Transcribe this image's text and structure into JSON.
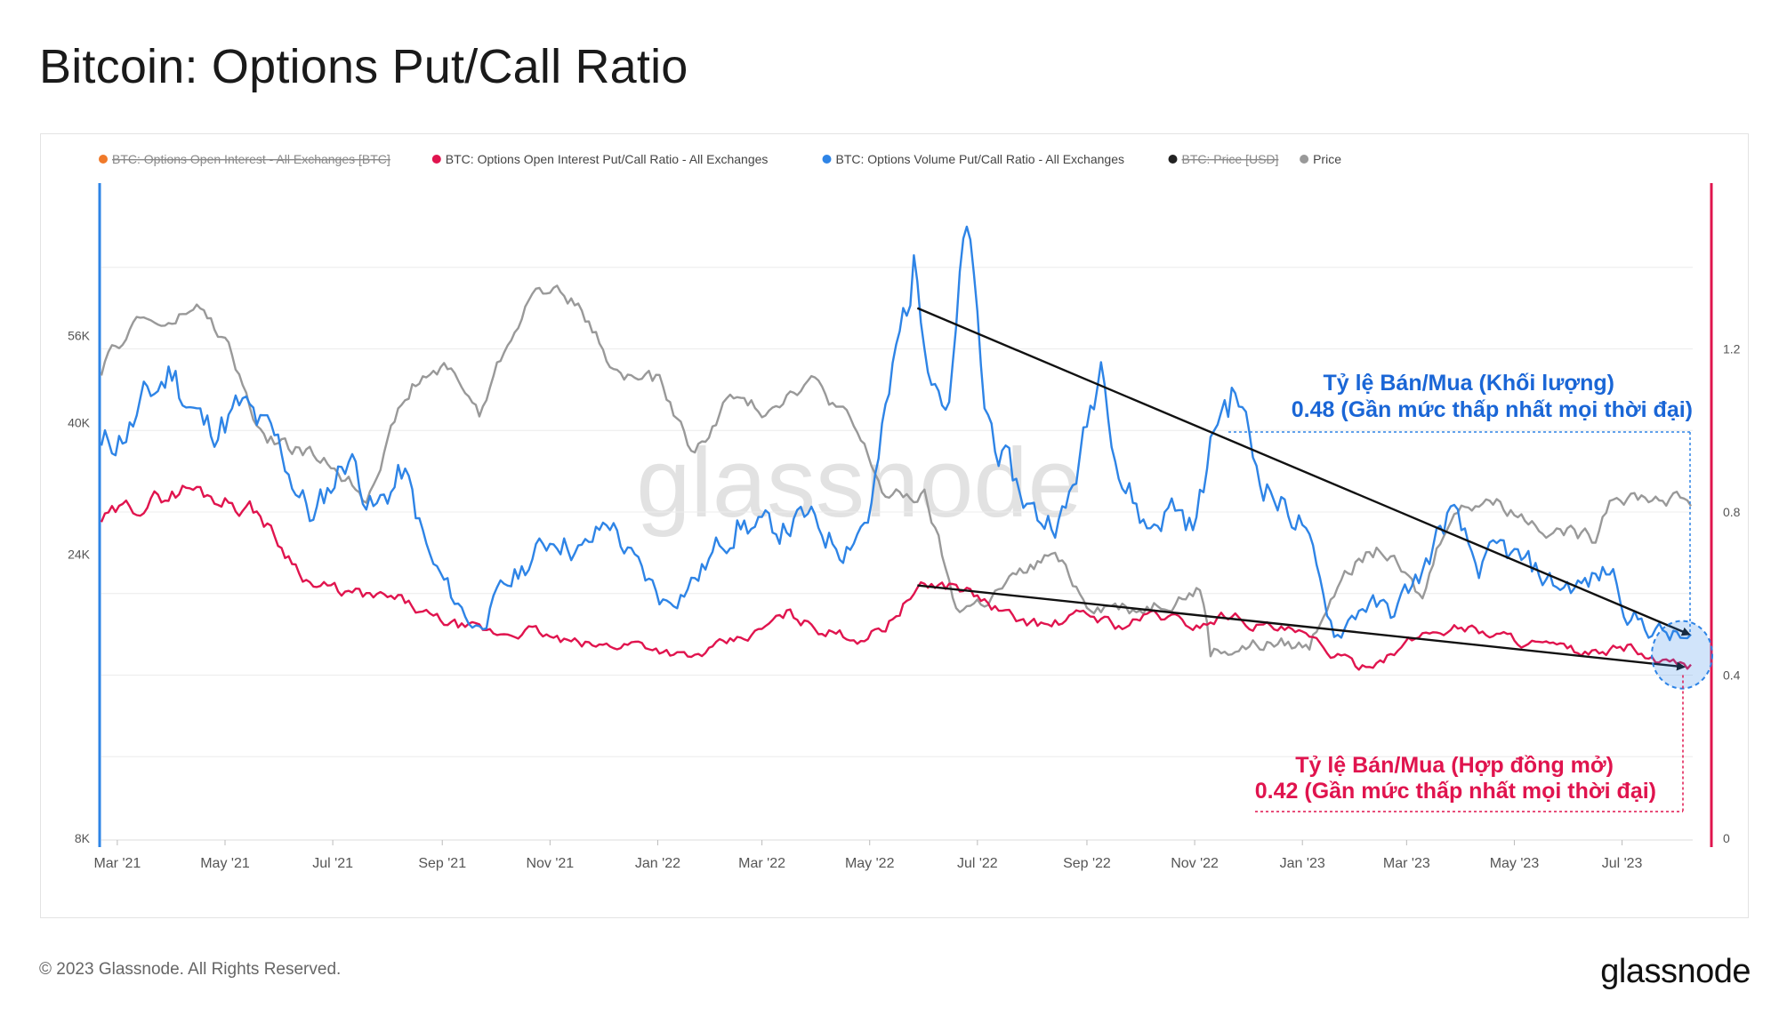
{
  "title": "Bitcoin: Options Put/Call Ratio",
  "footer": {
    "copyright": "© 2023 Glassnode. All Rights Reserved.",
    "logo": "glassnode"
  },
  "watermark": "glassnode",
  "colors": {
    "red": "#e0144e",
    "blue": "#2e84e6",
    "gray": "#999999",
    "orange": "#f07a2a",
    "black": "#222222",
    "axis_left": "#2e84e6",
    "axis_right": "#e0144e"
  },
  "legend": [
    {
      "label": "BTC: Options Open Interest - All Exchanges [BTC]",
      "color": "#f07a2a",
      "hidden": true
    },
    {
      "label": "BTC: Options Open Interest Put/Call Ratio - All Exchanges",
      "color": "#e0144e",
      "hidden": false
    },
    {
      "label": "BTC: Options Volume Put/Call Ratio - All Exchanges",
      "color": "#2e84e6",
      "hidden": false
    },
    {
      "label": "BTC: Price [USD]",
      "color": "#222222",
      "hidden": true
    },
    {
      "label": "Price",
      "color": "#999999",
      "hidden": false
    }
  ],
  "annotations": {
    "volume_label": "Tỷ lệ Bán/Mua (Khối lượng)",
    "volume_value": "0.48 (Gần mức thấp nhất mọi thời đại)",
    "oi_label": "Tỷ lệ Bán/Mua (Hợp đồng mở)",
    "oi_value": "0.42 (Gần mức thấp nhất mọi thời đại)"
  },
  "chart_data": {
    "type": "line",
    "x_range": [
      "2021-02-20",
      "2023-08-10"
    ],
    "x_ticks": [
      {
        "date": "2021-03-01",
        "label": "Mar '21"
      },
      {
        "date": "2021-05-01",
        "label": "May '21"
      },
      {
        "date": "2021-07-01",
        "label": "Jul '21"
      },
      {
        "date": "2021-09-01",
        "label": "Sep '21"
      },
      {
        "date": "2021-11-01",
        "label": "Nov '21"
      },
      {
        "date": "2022-01-01",
        "label": "Jan '22"
      },
      {
        "date": "2022-03-01",
        "label": "Mar '22"
      },
      {
        "date": "2022-05-01",
        "label": "May '22"
      },
      {
        "date": "2022-07-01",
        "label": "Jul '22"
      },
      {
        "date": "2022-09-01",
        "label": "Sep '22"
      },
      {
        "date": "2022-11-01",
        "label": "Nov '22"
      },
      {
        "date": "2023-01-01",
        "label": "Jan '23"
      },
      {
        "date": "2023-03-01",
        "label": "Mar '23"
      },
      {
        "date": "2023-05-01",
        "label": "May '23"
      },
      {
        "date": "2023-07-01",
        "label": "Jul '23"
      }
    ],
    "y_left": {
      "scale": "log",
      "range": [
        8000,
        100000
      ],
      "ticks": [
        {
          "v": 8000,
          "label": "8K"
        },
        {
          "v": 24000,
          "label": "24K"
        },
        {
          "v": 40000,
          "label": "40K"
        },
        {
          "v": 56000,
          "label": "56K"
        }
      ]
    },
    "y_right": {
      "scale": "linear",
      "range": [
        0,
        1.6
      ],
      "ticks": [
        {
          "v": 0,
          "label": "0"
        },
        {
          "v": 0.4,
          "label": "0.4"
        },
        {
          "v": 0.8,
          "label": "0.8"
        },
        {
          "v": 1.2,
          "label": "1.2"
        }
      ]
    },
    "series": [
      {
        "name": "BTC: Options Volume Put/Call Ratio - All Exchanges",
        "axis": "right",
        "color": "#2e84e6",
        "points": [
          [
            "2021-02-20",
            0.95
          ],
          [
            "2021-03-10",
            1.02
          ],
          [
            "2021-04-01",
            1.15
          ],
          [
            "2021-04-20",
            1.0
          ],
          [
            "2021-05-10",
            1.05
          ],
          [
            "2021-06-01",
            0.95
          ],
          [
            "2021-06-20",
            0.78
          ],
          [
            "2021-07-10",
            0.95
          ],
          [
            "2021-07-25",
            0.8
          ],
          [
            "2021-08-10",
            0.9
          ],
          [
            "2021-08-25",
            0.68
          ],
          [
            "2021-09-05",
            0.6
          ],
          [
            "2021-09-20",
            0.52
          ],
          [
            "2021-10-05",
            0.6
          ],
          [
            "2021-10-20",
            0.68
          ],
          [
            "2021-11-05",
            0.75
          ],
          [
            "2021-11-20",
            0.7
          ],
          [
            "2021-12-05",
            0.78
          ],
          [
            "2021-12-20",
            0.66
          ],
          [
            "2022-01-05",
            0.58
          ],
          [
            "2022-01-25",
            0.65
          ],
          [
            "2022-02-15",
            0.78
          ],
          [
            "2022-03-05",
            0.75
          ],
          [
            "2022-03-25",
            0.78
          ],
          [
            "2022-04-15",
            0.72
          ],
          [
            "2022-05-01",
            0.8
          ],
          [
            "2022-05-15",
            1.15
          ],
          [
            "2022-05-26",
            1.4
          ],
          [
            "2022-06-05",
            1.2
          ],
          [
            "2022-06-15",
            1.05
          ],
          [
            "2022-06-25",
            1.5
          ],
          [
            "2022-07-05",
            1.05
          ],
          [
            "2022-07-20",
            0.88
          ],
          [
            "2022-08-05",
            0.78
          ],
          [
            "2022-08-20",
            0.8
          ],
          [
            "2022-09-01",
            1.0
          ],
          [
            "2022-09-10",
            1.2
          ],
          [
            "2022-09-20",
            0.9
          ],
          [
            "2022-10-05",
            0.76
          ],
          [
            "2022-10-20",
            0.82
          ],
          [
            "2022-11-01",
            0.76
          ],
          [
            "2022-11-15",
            1.05
          ],
          [
            "2022-11-25",
            1.1
          ],
          [
            "2022-12-05",
            0.92
          ],
          [
            "2022-12-20",
            0.82
          ],
          [
            "2023-01-01",
            0.78
          ],
          [
            "2023-01-10",
            0.62
          ],
          [
            "2023-01-20",
            0.5
          ],
          [
            "2023-02-05",
            0.58
          ],
          [
            "2023-02-20",
            0.55
          ],
          [
            "2023-03-10",
            0.65
          ],
          [
            "2023-03-25",
            0.8
          ],
          [
            "2023-04-10",
            0.66
          ],
          [
            "2023-04-25",
            0.7
          ],
          [
            "2023-05-10",
            0.66
          ],
          [
            "2023-05-25",
            0.62
          ],
          [
            "2023-06-10",
            0.62
          ],
          [
            "2023-06-25",
            0.66
          ],
          [
            "2023-07-05",
            0.55
          ],
          [
            "2023-07-15",
            0.52
          ],
          [
            "2023-07-25",
            0.5
          ],
          [
            "2023-08-10",
            0.48
          ]
        ]
      },
      {
        "name": "BTC: Options Open Interest Put/Call Ratio - All Exchanges",
        "axis": "right",
        "color": "#e0144e",
        "points": [
          [
            "2021-02-20",
            0.78
          ],
          [
            "2021-03-15",
            0.82
          ],
          [
            "2021-04-10",
            0.86
          ],
          [
            "2021-05-01",
            0.83
          ],
          [
            "2021-05-20",
            0.8
          ],
          [
            "2021-06-01",
            0.72
          ],
          [
            "2021-06-20",
            0.62
          ],
          [
            "2021-07-10",
            0.6
          ],
          [
            "2021-07-25",
            0.59
          ],
          [
            "2021-08-10",
            0.58
          ],
          [
            "2021-08-25",
            0.54
          ],
          [
            "2021-09-10",
            0.52
          ],
          [
            "2021-10-01",
            0.5
          ],
          [
            "2021-10-20",
            0.51
          ],
          [
            "2021-11-10",
            0.48
          ],
          [
            "2021-11-30",
            0.47
          ],
          [
            "2021-12-20",
            0.48
          ],
          [
            "2022-01-05",
            0.46
          ],
          [
            "2022-01-20",
            0.44
          ],
          [
            "2022-02-05",
            0.47
          ],
          [
            "2022-02-25",
            0.5
          ],
          [
            "2022-03-15",
            0.55
          ],
          [
            "2022-04-05",
            0.51
          ],
          [
            "2022-04-25",
            0.49
          ],
          [
            "2022-05-10",
            0.52
          ],
          [
            "2022-05-25",
            0.6
          ],
          [
            "2022-06-05",
            0.62
          ],
          [
            "2022-06-20",
            0.62
          ],
          [
            "2022-07-05",
            0.58
          ],
          [
            "2022-07-20",
            0.54
          ],
          [
            "2022-08-10",
            0.52
          ],
          [
            "2022-09-01",
            0.55
          ],
          [
            "2022-09-20",
            0.52
          ],
          [
            "2022-10-10",
            0.55
          ],
          [
            "2022-11-01",
            0.52
          ],
          [
            "2022-11-20",
            0.55
          ],
          [
            "2022-12-10",
            0.52
          ],
          [
            "2022-12-30",
            0.5
          ],
          [
            "2023-01-15",
            0.46
          ],
          [
            "2023-02-01",
            0.42
          ],
          [
            "2023-02-20",
            0.45
          ],
          [
            "2023-03-10",
            0.5
          ],
          [
            "2023-03-30",
            0.52
          ],
          [
            "2023-04-20",
            0.5
          ],
          [
            "2023-05-10",
            0.48
          ],
          [
            "2023-05-30",
            0.46
          ],
          [
            "2023-06-20",
            0.45
          ],
          [
            "2023-07-05",
            0.47
          ],
          [
            "2023-07-20",
            0.43
          ],
          [
            "2023-08-10",
            0.42
          ]
        ]
      },
      {
        "name": "Price",
        "axis": "left",
        "color": "#999999",
        "points": [
          [
            "2021-02-20",
            49000
          ],
          [
            "2021-03-13",
            60000
          ],
          [
            "2021-04-01",
            58000
          ],
          [
            "2021-04-14",
            63000
          ],
          [
            "2021-05-01",
            55000
          ],
          [
            "2021-05-20",
            38000
          ],
          [
            "2021-06-10",
            36000
          ],
          [
            "2021-07-01",
            34000
          ],
          [
            "2021-07-20",
            30000
          ],
          [
            "2021-08-15",
            46000
          ],
          [
            "2021-09-05",
            50000
          ],
          [
            "2021-09-22",
            41000
          ],
          [
            "2021-10-10",
            56000
          ],
          [
            "2021-10-20",
            65000
          ],
          [
            "2021-11-09",
            67500
          ],
          [
            "2021-11-25",
            57000
          ],
          [
            "2021-12-10",
            48000
          ],
          [
            "2022-01-01",
            47000
          ],
          [
            "2022-01-22",
            35000
          ],
          [
            "2022-02-10",
            44000
          ],
          [
            "2022-03-01",
            42000
          ],
          [
            "2022-03-28",
            47500
          ],
          [
            "2022-04-20",
            40000
          ],
          [
            "2022-05-10",
            30000
          ],
          [
            "2022-06-01",
            30000
          ],
          [
            "2022-06-18",
            19500
          ],
          [
            "2022-07-05",
            20000
          ],
          [
            "2022-08-12",
            24000
          ],
          [
            "2022-09-01",
            20000
          ],
          [
            "2022-10-01",
            19500
          ],
          [
            "2022-11-05",
            21000
          ],
          [
            "2022-11-10",
            16500
          ],
          [
            "2022-12-15",
            17000
          ],
          [
            "2023-01-05",
            16800
          ],
          [
            "2023-01-25",
            23000
          ],
          [
            "2023-02-15",
            24500
          ],
          [
            "2023-03-10",
            20000
          ],
          [
            "2023-03-25",
            28000
          ],
          [
            "2023-04-15",
            30000
          ],
          [
            "2023-05-15",
            27000
          ],
          [
            "2023-06-15",
            25500
          ],
          [
            "2023-06-25",
            30500
          ],
          [
            "2023-07-15",
            30000
          ],
          [
            "2023-08-10",
            29500
          ]
        ]
      }
    ],
    "trend_arrows": [
      {
        "series": "volume",
        "from": [
          "2022-05-28",
          1.3
        ],
        "to": [
          "2023-08-08",
          0.5
        ]
      },
      {
        "series": "open_interest",
        "from": [
          "2022-05-28",
          0.62
        ],
        "to": [
          "2023-08-05",
          0.42
        ]
      }
    ]
  }
}
